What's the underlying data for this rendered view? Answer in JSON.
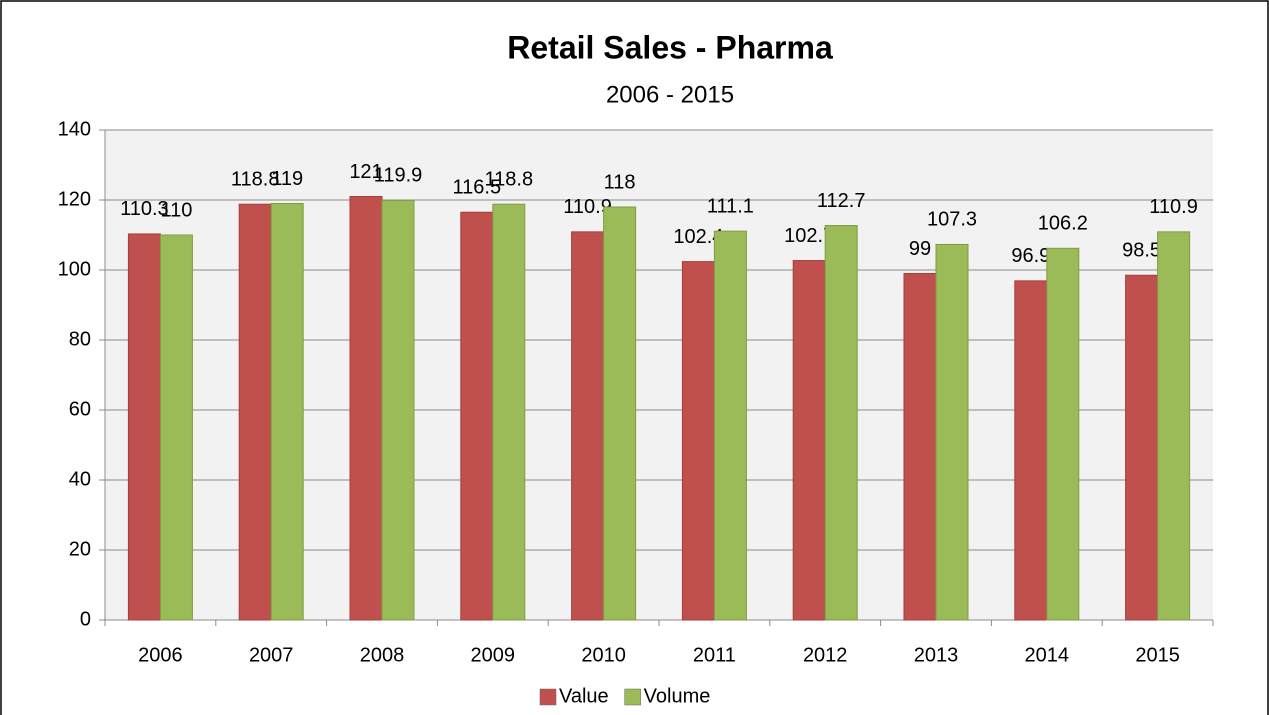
{
  "chart_data": {
    "type": "bar",
    "title": "Retail Sales - Pharma",
    "subtitle": "2006 - 2015",
    "categories": [
      "2006",
      "2007",
      "2008",
      "2009",
      "2010",
      "2011",
      "2012",
      "2013",
      "2014",
      "2015"
    ],
    "series": [
      {
        "name": "Value",
        "color": "#c0504d",
        "values": [
          110.3,
          118.8,
          121,
          116.5,
          110.9,
          102.4,
          102.7,
          99,
          96.9,
          98.5
        ]
      },
      {
        "name": "Volume",
        "color": "#9bbb59",
        "values": [
          110,
          119,
          119.9,
          118.8,
          118,
          111.1,
          112.7,
          107.3,
          106.2,
          110.9
        ]
      }
    ],
    "ylim": [
      0,
      140
    ],
    "yticks": [
      0,
      20,
      40,
      60,
      80,
      100,
      120,
      140
    ],
    "grid": true,
    "legend": "bottom"
  }
}
